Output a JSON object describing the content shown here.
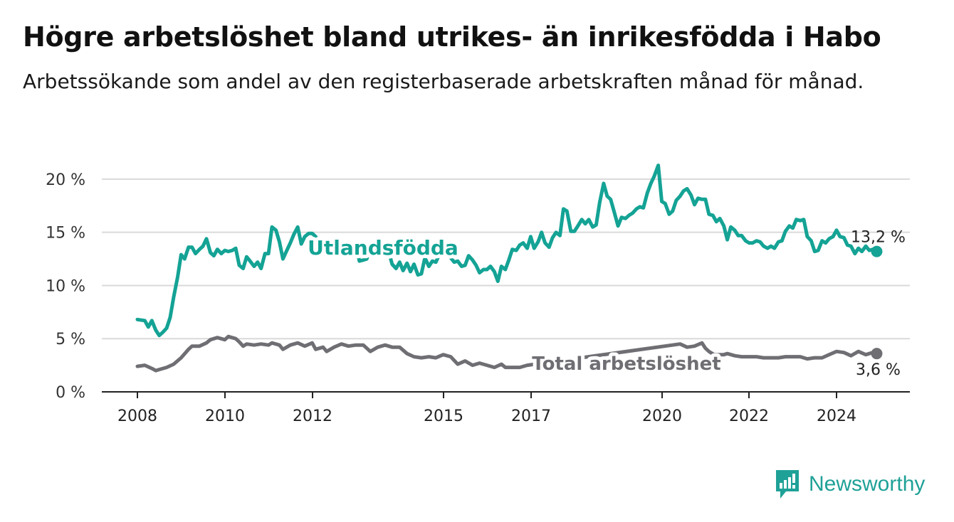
{
  "header": {
    "title": "Högre arbetslöshet bland utrikes- än inrikesfödda i Habo",
    "subtitle": "Arbetssökande som andel av den registerbaserade arbetskraften månad för månad."
  },
  "brand": {
    "name": "Newsworthy",
    "icon": "bar-chart-logo-icon",
    "color": "#1fa197"
  },
  "colors": {
    "foreign_born": "#14a395",
    "total": "#6f6e73",
    "grid": "#d9d9d9",
    "axis": "#222222"
  },
  "chart_data": {
    "type": "line",
    "ylim": [
      0,
      22
    ],
    "yticks": [
      0,
      5,
      10,
      15,
      20
    ],
    "ytick_labels": [
      "0 %",
      "5 %",
      "10 %",
      "15 %",
      "20 %"
    ],
    "xlim": [
      2008,
      2025.75
    ],
    "xticks": [
      2008,
      2010,
      2012,
      2015,
      2017,
      2020,
      2022,
      2024
    ],
    "xtick_labels": [
      "2008",
      "2010",
      "2012",
      "2015",
      "2017",
      "2020",
      "2022",
      "2024"
    ],
    "grid": true,
    "series": [
      {
        "name": "Utlandsfödda",
        "color": "#14a395",
        "end_label": "13,2 %",
        "points": [
          [
            2008.0,
            6.8
          ],
          [
            2008.17,
            6.7
          ],
          [
            2008.25,
            6.1
          ],
          [
            2008.33,
            6.7
          ],
          [
            2008.42,
            5.8
          ],
          [
            2008.5,
            5.3
          ],
          [
            2008.58,
            5.6
          ],
          [
            2008.67,
            6.0
          ],
          [
            2008.75,
            7.0
          ],
          [
            2008.83,
            8.9
          ],
          [
            2008.92,
            10.8
          ],
          [
            2009.0,
            12.9
          ],
          [
            2009.08,
            12.5
          ],
          [
            2009.17,
            13.6
          ],
          [
            2009.25,
            13.6
          ],
          [
            2009.33,
            13.0
          ],
          [
            2009.42,
            13.4
          ],
          [
            2009.5,
            13.7
          ],
          [
            2009.58,
            14.4
          ],
          [
            2009.67,
            13.1
          ],
          [
            2009.75,
            12.8
          ],
          [
            2009.83,
            13.4
          ],
          [
            2009.92,
            13.0
          ],
          [
            2010.0,
            13.3
          ],
          [
            2010.08,
            13.2
          ],
          [
            2010.17,
            13.3
          ],
          [
            2010.25,
            13.5
          ],
          [
            2010.33,
            11.9
          ],
          [
            2010.42,
            11.6
          ],
          [
            2010.5,
            12.7
          ],
          [
            2010.58,
            12.3
          ],
          [
            2010.67,
            11.8
          ],
          [
            2010.75,
            12.2
          ],
          [
            2010.83,
            11.6
          ],
          [
            2010.92,
            13.0
          ],
          [
            2011.0,
            13.0
          ],
          [
            2011.08,
            15.5
          ],
          [
            2011.17,
            15.2
          ],
          [
            2011.25,
            14.1
          ],
          [
            2011.33,
            12.5
          ],
          [
            2011.42,
            13.3
          ],
          [
            2011.5,
            14.0
          ],
          [
            2011.58,
            14.8
          ],
          [
            2011.67,
            15.5
          ],
          [
            2011.75,
            13.9
          ],
          [
            2011.83,
            14.6
          ],
          [
            2011.92,
            14.9
          ],
          [
            2012.0,
            14.9
          ],
          [
            2012.08,
            14.6
          ],
          [
            2012.17,
            14.0
          ],
          [
            2012.2,
            13.5
          ],
          [
            2012.4,
            12.9
          ],
          [
            2012.6,
            13.8
          ],
          [
            2012.8,
            13.6
          ],
          [
            2013.0,
            13.9
          ],
          [
            2013.08,
            12.3
          ],
          [
            2013.17,
            12.4
          ],
          [
            2013.25,
            12.5
          ],
          [
            2013.33,
            13.6
          ],
          [
            2013.42,
            13.9
          ],
          [
            2013.5,
            13.3
          ],
          [
            2013.58,
            14.2
          ],
          [
            2013.75,
            13.2
          ],
          [
            2013.83,
            12.0
          ],
          [
            2013.92,
            11.6
          ],
          [
            2014.0,
            12.2
          ],
          [
            2014.08,
            11.4
          ],
          [
            2014.17,
            12.1
          ],
          [
            2014.25,
            11.3
          ],
          [
            2014.33,
            12.0
          ],
          [
            2014.42,
            11.0
          ],
          [
            2014.5,
            11.1
          ],
          [
            2014.58,
            12.6
          ],
          [
            2014.67,
            11.8
          ],
          [
            2014.75,
            12.3
          ],
          [
            2014.83,
            12.2
          ],
          [
            2014.92,
            13.0
          ],
          [
            2015.0,
            13.8
          ],
          [
            2015.08,
            13.1
          ],
          [
            2015.17,
            12.6
          ],
          [
            2015.25,
            12.2
          ],
          [
            2015.33,
            12.3
          ],
          [
            2015.42,
            11.8
          ],
          [
            2015.5,
            11.9
          ],
          [
            2015.58,
            12.8
          ],
          [
            2015.67,
            12.4
          ],
          [
            2015.75,
            11.9
          ],
          [
            2015.83,
            11.2
          ],
          [
            2015.92,
            11.5
          ],
          [
            2016.0,
            11.5
          ],
          [
            2016.08,
            11.8
          ],
          [
            2016.17,
            11.3
          ],
          [
            2016.25,
            10.4
          ],
          [
            2016.33,
            11.8
          ],
          [
            2016.42,
            11.5
          ],
          [
            2016.5,
            12.4
          ],
          [
            2016.58,
            13.4
          ],
          [
            2016.67,
            13.3
          ],
          [
            2016.75,
            13.8
          ],
          [
            2016.83,
            14.0
          ],
          [
            2016.92,
            13.5
          ],
          [
            2017.0,
            14.6
          ],
          [
            2017.08,
            13.5
          ],
          [
            2017.17,
            14.1
          ],
          [
            2017.25,
            15.0
          ],
          [
            2017.33,
            14.0
          ],
          [
            2017.42,
            13.6
          ],
          [
            2017.5,
            14.5
          ],
          [
            2017.58,
            15.0
          ],
          [
            2017.67,
            14.7
          ],
          [
            2017.75,
            17.2
          ],
          [
            2017.83,
            17.0
          ],
          [
            2017.92,
            15.1
          ],
          [
            2018.0,
            15.1
          ],
          [
            2018.08,
            15.6
          ],
          [
            2018.17,
            16.2
          ],
          [
            2018.25,
            15.8
          ],
          [
            2018.33,
            16.2
          ],
          [
            2018.42,
            15.5
          ],
          [
            2018.5,
            15.7
          ],
          [
            2018.58,
            17.8
          ],
          [
            2018.67,
            19.6
          ],
          [
            2018.75,
            18.4
          ],
          [
            2018.83,
            18.1
          ],
          [
            2018.92,
            16.8
          ],
          [
            2019.0,
            15.6
          ],
          [
            2019.08,
            16.4
          ],
          [
            2019.17,
            16.3
          ],
          [
            2019.25,
            16.6
          ],
          [
            2019.33,
            16.8
          ],
          [
            2019.42,
            17.2
          ],
          [
            2019.5,
            17.4
          ],
          [
            2019.58,
            17.3
          ],
          [
            2019.67,
            18.7
          ],
          [
            2019.75,
            19.6
          ],
          [
            2019.83,
            20.3
          ],
          [
            2019.92,
            21.3
          ],
          [
            2020.0,
            17.9
          ],
          [
            2020.08,
            17.7
          ],
          [
            2020.17,
            16.7
          ],
          [
            2020.25,
            17.0
          ],
          [
            2020.33,
            18.0
          ],
          [
            2020.42,
            18.4
          ],
          [
            2020.5,
            18.9
          ],
          [
            2020.58,
            19.1
          ],
          [
            2020.67,
            18.5
          ],
          [
            2020.75,
            17.6
          ],
          [
            2020.83,
            18.2
          ],
          [
            2020.92,
            18.1
          ],
          [
            2021.0,
            18.1
          ],
          [
            2021.08,
            16.7
          ],
          [
            2021.17,
            16.6
          ],
          [
            2021.25,
            16.0
          ],
          [
            2021.33,
            16.3
          ],
          [
            2021.42,
            15.6
          ],
          [
            2021.5,
            14.3
          ],
          [
            2021.58,
            15.5
          ],
          [
            2021.67,
            15.2
          ],
          [
            2021.75,
            14.7
          ],
          [
            2021.83,
            14.7
          ],
          [
            2021.92,
            14.2
          ],
          [
            2022.0,
            14.0
          ],
          [
            2022.08,
            14.0
          ],
          [
            2022.17,
            14.2
          ],
          [
            2022.25,
            14.1
          ],
          [
            2022.33,
            13.7
          ],
          [
            2022.42,
            13.5
          ],
          [
            2022.5,
            13.7
          ],
          [
            2022.58,
            13.5
          ],
          [
            2022.67,
            14.1
          ],
          [
            2022.75,
            14.2
          ],
          [
            2022.83,
            15.1
          ],
          [
            2022.92,
            15.6
          ],
          [
            2023.0,
            15.4
          ],
          [
            2023.08,
            16.2
          ],
          [
            2023.17,
            16.1
          ],
          [
            2023.25,
            16.2
          ],
          [
            2023.33,
            14.6
          ],
          [
            2023.42,
            14.2
          ],
          [
            2023.5,
            13.2
          ],
          [
            2023.58,
            13.3
          ],
          [
            2023.67,
            14.2
          ],
          [
            2023.75,
            14.0
          ],
          [
            2023.83,
            14.4
          ],
          [
            2023.92,
            14.6
          ],
          [
            2024.0,
            15.2
          ],
          [
            2024.08,
            14.6
          ],
          [
            2024.17,
            14.5
          ],
          [
            2024.25,
            13.8
          ],
          [
            2024.33,
            13.7
          ],
          [
            2024.42,
            13.0
          ],
          [
            2024.5,
            13.5
          ],
          [
            2024.58,
            13.2
          ],
          [
            2024.67,
            13.7
          ],
          [
            2024.75,
            13.3
          ],
          [
            2024.83,
            13.4
          ],
          [
            2024.92,
            13.2
          ]
        ]
      },
      {
        "name": "Total arbetslöshet",
        "color": "#6f6e73",
        "end_label": "3,6 %",
        "points": [
          [
            2008.0,
            2.4
          ],
          [
            2008.17,
            2.5
          ],
          [
            2008.33,
            2.2
          ],
          [
            2008.42,
            2.0
          ],
          [
            2008.5,
            2.1
          ],
          [
            2008.67,
            2.3
          ],
          [
            2008.83,
            2.6
          ],
          [
            2009.0,
            3.2
          ],
          [
            2009.17,
            4.0
          ],
          [
            2009.25,
            4.3
          ],
          [
            2009.42,
            4.3
          ],
          [
            2009.58,
            4.6
          ],
          [
            2009.67,
            4.9
          ],
          [
            2009.83,
            5.1
          ],
          [
            2010.0,
            4.9
          ],
          [
            2010.08,
            5.2
          ],
          [
            2010.25,
            5.0
          ],
          [
            2010.33,
            4.7
          ],
          [
            2010.42,
            4.3
          ],
          [
            2010.5,
            4.5
          ],
          [
            2010.67,
            4.4
          ],
          [
            2010.83,
            4.5
          ],
          [
            2011.0,
            4.4
          ],
          [
            2011.08,
            4.6
          ],
          [
            2011.25,
            4.4
          ],
          [
            2011.33,
            4.0
          ],
          [
            2011.5,
            4.4
          ],
          [
            2011.67,
            4.6
          ],
          [
            2011.83,
            4.3
          ],
          [
            2012.0,
            4.6
          ],
          [
            2012.08,
            4.0
          ],
          [
            2012.25,
            4.2
          ],
          [
            2012.33,
            3.8
          ],
          [
            2012.5,
            4.2
          ],
          [
            2012.67,
            4.5
          ],
          [
            2012.83,
            4.3
          ],
          [
            2013.0,
            4.4
          ],
          [
            2013.17,
            4.4
          ],
          [
            2013.33,
            3.8
          ],
          [
            2013.5,
            4.2
          ],
          [
            2013.67,
            4.4
          ],
          [
            2013.83,
            4.2
          ],
          [
            2014.0,
            4.2
          ],
          [
            2014.17,
            3.6
          ],
          [
            2014.33,
            3.3
          ],
          [
            2014.5,
            3.2
          ],
          [
            2014.67,
            3.3
          ],
          [
            2014.83,
            3.2
          ],
          [
            2015.0,
            3.5
          ],
          [
            2015.17,
            3.3
          ],
          [
            2015.33,
            2.6
          ],
          [
            2015.5,
            2.9
          ],
          [
            2015.67,
            2.5
          ],
          [
            2015.83,
            2.7
          ],
          [
            2016.0,
            2.5
          ],
          [
            2016.17,
            2.3
          ],
          [
            2016.33,
            2.6
          ],
          [
            2016.42,
            2.3
          ],
          [
            2016.58,
            2.3
          ],
          [
            2016.75,
            2.3
          ],
          [
            2016.92,
            2.5
          ],
          [
            2020.42,
            4.5
          ],
          [
            2020.58,
            4.2
          ],
          [
            2020.75,
            4.3
          ],
          [
            2020.92,
            4.6
          ],
          [
            2021.0,
            4.1
          ],
          [
            2021.08,
            3.8
          ],
          [
            2021.2,
            3.5
          ],
          [
            2021.42,
            3.5
          ],
          [
            2021.5,
            3.6
          ],
          [
            2021.67,
            3.4
          ],
          [
            2021.83,
            3.3
          ],
          [
            2022.0,
            3.3
          ],
          [
            2022.17,
            3.3
          ],
          [
            2022.33,
            3.2
          ],
          [
            2022.5,
            3.2
          ],
          [
            2022.67,
            3.2
          ],
          [
            2022.83,
            3.3
          ],
          [
            2023.0,
            3.3
          ],
          [
            2023.17,
            3.3
          ],
          [
            2023.33,
            3.1
          ],
          [
            2023.5,
            3.2
          ],
          [
            2023.67,
            3.2
          ],
          [
            2023.83,
            3.5
          ],
          [
            2024.0,
            3.8
          ],
          [
            2024.17,
            3.7
          ],
          [
            2024.33,
            3.4
          ],
          [
            2024.5,
            3.8
          ],
          [
            2024.67,
            3.5
          ],
          [
            2024.83,
            3.7
          ],
          [
            2024.92,
            3.6
          ]
        ]
      }
    ]
  }
}
